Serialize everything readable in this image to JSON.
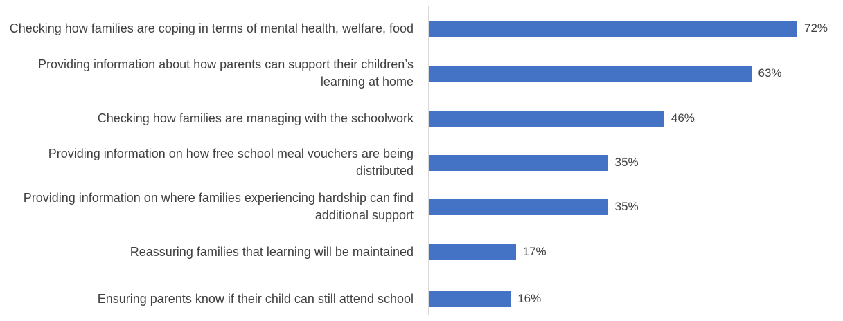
{
  "chart_data": {
    "type": "bar",
    "orientation": "horizontal",
    "categories": [
      "Checking how families are coping in terms of mental health, welfare, food",
      "Providing information about how parents can support their children’s learning at home",
      "Checking how families are managing with the schoolwork",
      "Providing information on how free school meal vouchers are being distributed",
      "Providing information on where families experiencing hardship can find additional support",
      "Reassuring families that learning will be maintained",
      "Ensuring parents know if their child can still attend school"
    ],
    "values": [
      72,
      63,
      46,
      35,
      35,
      17,
      16
    ],
    "value_labels": [
      "72%",
      "63%",
      "46%",
      "35%",
      "35%",
      "17%",
      "16%"
    ],
    "color": "#4472c4"
  }
}
